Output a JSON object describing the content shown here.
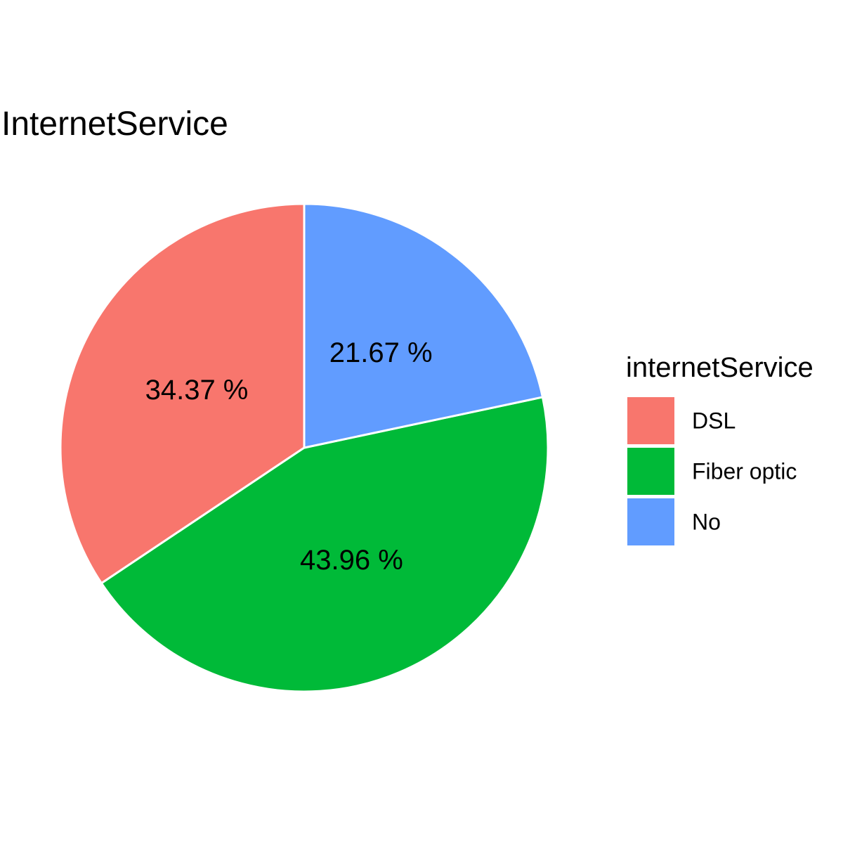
{
  "chart_data": {
    "type": "pie",
    "title": "InternetService",
    "categories": [
      "DSL",
      "Fiber optic",
      "No"
    ],
    "values": [
      34.37,
      43.96,
      21.67
    ],
    "labels": [
      "34.37 %",
      "43.96 %",
      "21.67 %"
    ],
    "colors": [
      "#F8766D",
      "#00BA38",
      "#619CFF"
    ],
    "legend": {
      "title": "internetService",
      "placement": "right"
    },
    "direction": "counter-clockwise",
    "start": "top"
  }
}
